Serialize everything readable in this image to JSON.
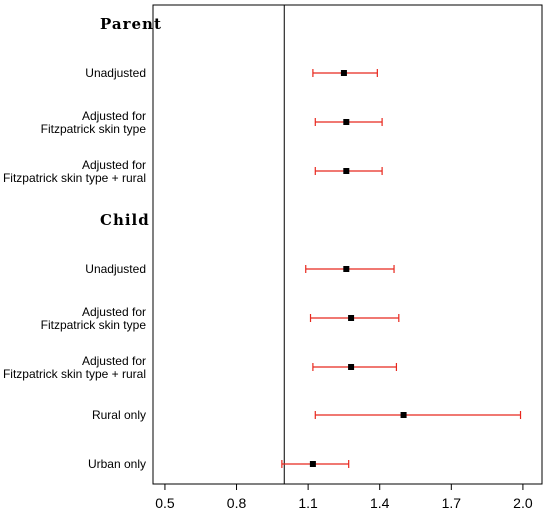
{
  "chart_data": {
    "type": "forest",
    "title": "",
    "xlabel": "",
    "ylabel": "",
    "xlim": [
      0.45,
      2.08
    ],
    "reference_line": 1.0,
    "x_ticks": [
      "0.5",
      "0.8",
      "1.1",
      "1.4",
      "1.7",
      "2.0"
    ],
    "x_tick_values": [
      0.5,
      0.8,
      1.1,
      1.4,
      1.7,
      2.0
    ],
    "colors": {
      "ci": "#e8281e",
      "point": "#000000",
      "axis": "#000000"
    },
    "rows": [
      {
        "kind": "group",
        "label": "Parent"
      },
      {
        "kind": "item",
        "lines": [
          "Unadjusted"
        ],
        "est": 1.25,
        "lo": 1.12,
        "hi": 1.39
      },
      {
        "kind": "item",
        "lines": [
          "Adjusted for",
          "Fitzpatrick skin type"
        ],
        "est": 1.26,
        "lo": 1.13,
        "hi": 1.41
      },
      {
        "kind": "item",
        "lines": [
          "Adjusted for",
          "Fitzpatrick skin type + rural"
        ],
        "est": 1.26,
        "lo": 1.13,
        "hi": 1.41
      },
      {
        "kind": "group",
        "label": "Child"
      },
      {
        "kind": "item",
        "lines": [
          "Unadjusted"
        ],
        "est": 1.26,
        "lo": 1.09,
        "hi": 1.46
      },
      {
        "kind": "item",
        "lines": [
          "Adjusted for",
          "Fitzpatrick skin type"
        ],
        "est": 1.28,
        "lo": 1.11,
        "hi": 1.48
      },
      {
        "kind": "item",
        "lines": [
          "Adjusted for",
          "Fitzpatrick skin type + rural"
        ],
        "est": 1.28,
        "lo": 1.12,
        "hi": 1.47
      },
      {
        "kind": "item",
        "lines": [
          "Rural only"
        ],
        "est": 1.5,
        "lo": 1.13,
        "hi": 1.99
      },
      {
        "kind": "item",
        "lines": [
          "Urban only"
        ],
        "est": 1.12,
        "lo": 0.99,
        "hi": 1.27
      }
    ]
  }
}
